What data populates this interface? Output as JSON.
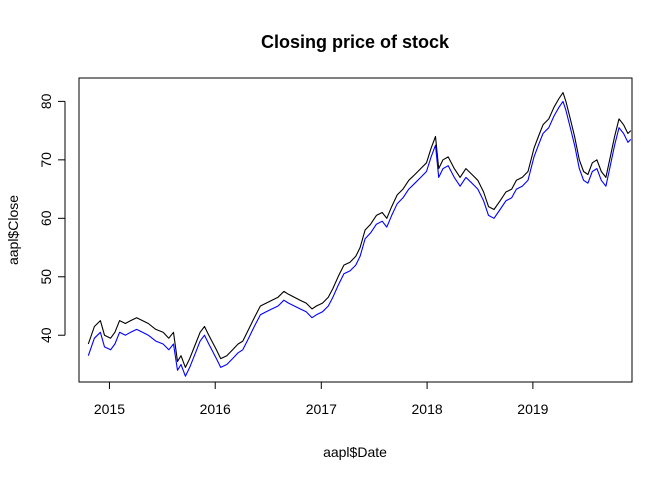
{
  "chart_data": {
    "type": "line",
    "title": "Closing price of stock",
    "xlabel": "aapl$Date",
    "ylabel": "aapl$Close",
    "x_ticks": [
      "2015",
      "2016",
      "2017",
      "2018",
      "2019"
    ],
    "y_ticks": [
      40,
      50,
      60,
      70,
      80
    ],
    "xlim": [
      "2014-09-18",
      "2019-12-09"
    ],
    "ylim": [
      32,
      84
    ],
    "grid": false,
    "series": [
      {
        "color": "#000000",
        "points": [
          [
            "2014-10-20",
            38.5
          ],
          [
            "2014-11-10",
            41.5
          ],
          [
            "2014-12-01",
            42.5
          ],
          [
            "2014-12-15",
            40.0
          ],
          [
            "2015-01-05",
            39.5
          ],
          [
            "2015-01-20",
            40.5
          ],
          [
            "2015-02-05",
            42.5
          ],
          [
            "2015-02-25",
            42.0
          ],
          [
            "2015-03-15",
            42.5
          ],
          [
            "2015-04-05",
            43.0
          ],
          [
            "2015-04-25",
            42.5
          ],
          [
            "2015-05-15",
            42.0
          ],
          [
            "2015-06-10",
            41.0
          ],
          [
            "2015-07-05",
            40.5
          ],
          [
            "2015-07-25",
            39.5
          ],
          [
            "2015-08-10",
            40.5
          ],
          [
            "2015-08-24",
            35.5
          ],
          [
            "2015-09-05",
            36.5
          ],
          [
            "2015-09-20",
            34.5
          ],
          [
            "2015-10-05",
            36.0
          ],
          [
            "2015-10-25",
            38.5
          ],
          [
            "2015-11-10",
            40.5
          ],
          [
            "2015-11-25",
            41.5
          ],
          [
            "2015-12-10",
            40.0
          ],
          [
            "2016-01-05",
            37.5
          ],
          [
            "2016-01-20",
            36.0
          ],
          [
            "2016-02-10",
            36.5
          ],
          [
            "2016-03-01",
            37.5
          ],
          [
            "2016-03-20",
            38.5
          ],
          [
            "2016-04-05",
            39.0
          ],
          [
            "2016-04-25",
            41.0
          ],
          [
            "2016-05-15",
            43.0
          ],
          [
            "2016-06-05",
            45.0
          ],
          [
            "2016-06-25",
            45.5
          ],
          [
            "2016-07-15",
            46.0
          ],
          [
            "2016-08-05",
            46.5
          ],
          [
            "2016-08-25",
            47.5
          ],
          [
            "2016-09-10",
            47.0
          ],
          [
            "2016-09-30",
            46.5
          ],
          [
            "2016-10-20",
            46.0
          ],
          [
            "2016-11-10",
            45.5
          ],
          [
            "2016-11-30",
            44.5
          ],
          [
            "2016-12-15",
            45.0
          ],
          [
            "2017-01-05",
            45.5
          ],
          [
            "2017-01-25",
            46.5
          ],
          [
            "2017-02-10",
            48.0
          ],
          [
            "2017-02-28",
            50.0
          ],
          [
            "2017-03-20",
            52.0
          ],
          [
            "2017-04-10",
            52.5
          ],
          [
            "2017-04-30",
            53.5
          ],
          [
            "2017-05-15",
            55.0
          ],
          [
            "2017-06-01",
            58.0
          ],
          [
            "2017-06-20",
            59.0
          ],
          [
            "2017-07-10",
            60.5
          ],
          [
            "2017-07-30",
            61.0
          ],
          [
            "2017-08-15",
            60.0
          ],
          [
            "2017-09-01",
            62.0
          ],
          [
            "2017-09-20",
            64.0
          ],
          [
            "2017-10-10",
            65.0
          ],
          [
            "2017-10-30",
            66.5
          ],
          [
            "2017-11-20",
            67.5
          ],
          [
            "2017-12-10",
            68.5
          ],
          [
            "2017-12-30",
            69.5
          ],
          [
            "2018-01-15",
            72.0
          ],
          [
            "2018-01-30",
            74.0
          ],
          [
            "2018-02-10",
            68.5
          ],
          [
            "2018-02-25",
            70.0
          ],
          [
            "2018-03-15",
            70.5
          ],
          [
            "2018-04-05",
            68.5
          ],
          [
            "2018-04-25",
            67.0
          ],
          [
            "2018-05-15",
            68.5
          ],
          [
            "2018-06-05",
            67.5
          ],
          [
            "2018-06-25",
            66.5
          ],
          [
            "2018-07-15",
            64.5
          ],
          [
            "2018-08-01",
            62.0
          ],
          [
            "2018-08-20",
            61.5
          ],
          [
            "2018-09-10",
            63.0
          ],
          [
            "2018-09-30",
            64.5
          ],
          [
            "2018-10-20",
            65.0
          ],
          [
            "2018-11-05",
            66.5
          ],
          [
            "2018-11-25",
            67.0
          ],
          [
            "2018-12-15",
            68.0
          ],
          [
            "2019-01-05",
            72.0
          ],
          [
            "2019-01-20",
            74.0
          ],
          [
            "2019-02-05",
            76.0
          ],
          [
            "2019-02-25",
            77.0
          ],
          [
            "2019-03-15",
            79.0
          ],
          [
            "2019-04-01",
            80.5
          ],
          [
            "2019-04-15",
            81.5
          ],
          [
            "2019-04-25",
            80.0
          ],
          [
            "2019-05-10",
            77.0
          ],
          [
            "2019-05-25",
            74.0
          ],
          [
            "2019-06-10",
            70.0
          ],
          [
            "2019-06-25",
            68.0
          ],
          [
            "2019-07-10",
            67.5
          ],
          [
            "2019-07-25",
            69.5
          ],
          [
            "2019-08-10",
            70.0
          ],
          [
            "2019-08-25",
            68.0
          ],
          [
            "2019-09-10",
            67.0
          ],
          [
            "2019-09-25",
            70.5
          ],
          [
            "2019-10-10",
            74.0
          ],
          [
            "2019-10-25",
            77.0
          ],
          [
            "2019-11-10",
            76.0
          ],
          [
            "2019-11-25",
            74.5
          ],
          [
            "2019-12-05",
            75.0
          ]
        ]
      },
      {
        "color": "#0000ff",
        "points": [
          [
            "2014-10-20",
            36.5
          ],
          [
            "2014-11-10",
            39.5
          ],
          [
            "2014-12-01",
            40.5
          ],
          [
            "2014-12-15",
            38.0
          ],
          [
            "2015-01-05",
            37.5
          ],
          [
            "2015-01-20",
            38.5
          ],
          [
            "2015-02-05",
            40.5
          ],
          [
            "2015-02-25",
            40.0
          ],
          [
            "2015-03-15",
            40.5
          ],
          [
            "2015-04-05",
            41.0
          ],
          [
            "2015-04-25",
            40.5
          ],
          [
            "2015-05-15",
            40.0
          ],
          [
            "2015-06-10",
            39.0
          ],
          [
            "2015-07-05",
            38.5
          ],
          [
            "2015-07-25",
            37.5
          ],
          [
            "2015-08-10",
            38.5
          ],
          [
            "2015-08-24",
            34.0
          ],
          [
            "2015-09-05",
            35.0
          ],
          [
            "2015-09-20",
            33.0
          ],
          [
            "2015-10-05",
            34.5
          ],
          [
            "2015-10-25",
            37.0
          ],
          [
            "2015-11-10",
            39.0
          ],
          [
            "2015-11-25",
            40.0
          ],
          [
            "2015-12-10",
            38.5
          ],
          [
            "2016-01-05",
            36.0
          ],
          [
            "2016-01-20",
            34.5
          ],
          [
            "2016-02-10",
            35.0
          ],
          [
            "2016-03-01",
            36.0
          ],
          [
            "2016-03-20",
            37.0
          ],
          [
            "2016-04-05",
            37.5
          ],
          [
            "2016-04-25",
            39.5
          ],
          [
            "2016-05-15",
            41.5
          ],
          [
            "2016-06-05",
            43.5
          ],
          [
            "2016-06-25",
            44.0
          ],
          [
            "2016-07-15",
            44.5
          ],
          [
            "2016-08-05",
            45.0
          ],
          [
            "2016-08-25",
            46.0
          ],
          [
            "2016-09-10",
            45.5
          ],
          [
            "2016-09-30",
            45.0
          ],
          [
            "2016-10-20",
            44.5
          ],
          [
            "2016-11-10",
            44.0
          ],
          [
            "2016-11-30",
            43.0
          ],
          [
            "2016-12-15",
            43.5
          ],
          [
            "2017-01-05",
            44.0
          ],
          [
            "2017-01-25",
            45.0
          ],
          [
            "2017-02-10",
            46.5
          ],
          [
            "2017-02-28",
            48.5
          ],
          [
            "2017-03-20",
            50.5
          ],
          [
            "2017-04-10",
            51.0
          ],
          [
            "2017-04-30",
            52.0
          ],
          [
            "2017-05-15",
            53.5
          ],
          [
            "2017-06-01",
            56.5
          ],
          [
            "2017-06-20",
            57.5
          ],
          [
            "2017-07-10",
            59.0
          ],
          [
            "2017-07-30",
            59.5
          ],
          [
            "2017-08-15",
            58.5
          ],
          [
            "2017-09-01",
            60.5
          ],
          [
            "2017-09-20",
            62.5
          ],
          [
            "2017-10-10",
            63.5
          ],
          [
            "2017-10-30",
            65.0
          ],
          [
            "2017-11-20",
            66.0
          ],
          [
            "2017-12-10",
            67.0
          ],
          [
            "2017-12-30",
            68.0
          ],
          [
            "2018-01-15",
            70.5
          ],
          [
            "2018-01-30",
            72.5
          ],
          [
            "2018-02-10",
            67.0
          ],
          [
            "2018-02-25",
            68.5
          ],
          [
            "2018-03-15",
            69.0
          ],
          [
            "2018-04-05",
            67.0
          ],
          [
            "2018-04-25",
            65.5
          ],
          [
            "2018-05-15",
            67.0
          ],
          [
            "2018-06-05",
            66.0
          ],
          [
            "2018-06-25",
            65.0
          ],
          [
            "2018-07-15",
            63.0
          ],
          [
            "2018-08-01",
            60.5
          ],
          [
            "2018-08-20",
            60.0
          ],
          [
            "2018-09-10",
            61.5
          ],
          [
            "2018-09-30",
            63.0
          ],
          [
            "2018-10-20",
            63.5
          ],
          [
            "2018-11-05",
            65.0
          ],
          [
            "2018-11-25",
            65.5
          ],
          [
            "2018-12-15",
            66.5
          ],
          [
            "2019-01-05",
            70.5
          ],
          [
            "2019-01-20",
            72.5
          ],
          [
            "2019-02-05",
            74.5
          ],
          [
            "2019-02-25",
            75.5
          ],
          [
            "2019-03-15",
            77.5
          ],
          [
            "2019-04-01",
            79.0
          ],
          [
            "2019-04-15",
            80.0
          ],
          [
            "2019-04-25",
            78.5
          ],
          [
            "2019-05-10",
            75.5
          ],
          [
            "2019-05-25",
            72.5
          ],
          [
            "2019-06-10",
            68.5
          ],
          [
            "2019-06-25",
            66.5
          ],
          [
            "2019-07-10",
            66.0
          ],
          [
            "2019-07-25",
            68.0
          ],
          [
            "2019-08-10",
            68.5
          ],
          [
            "2019-08-25",
            66.5
          ],
          [
            "2019-09-10",
            65.5
          ],
          [
            "2019-09-25",
            69.0
          ],
          [
            "2019-10-10",
            72.5
          ],
          [
            "2019-10-25",
            75.5
          ],
          [
            "2019-11-10",
            74.5
          ],
          [
            "2019-11-25",
            73.0
          ],
          [
            "2019-12-05",
            73.5
          ]
        ]
      }
    ]
  }
}
